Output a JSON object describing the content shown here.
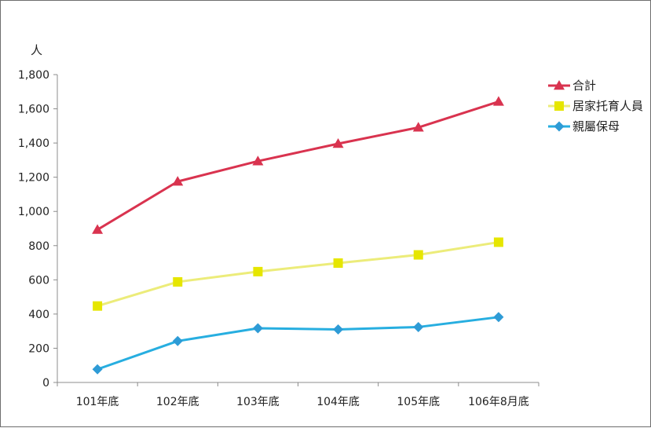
{
  "chart_data": {
    "type": "line",
    "title": "",
    "xlabel": "",
    "ylabel": "人",
    "categories": [
      "101年底",
      "102年底",
      "103年底",
      "104年底",
      "105年底",
      "106年8月底"
    ],
    "ylim": [
      0,
      1800
    ],
    "yticks": [
      0,
      200,
      400,
      600,
      800,
      1000,
      1200,
      1400,
      1600,
      1800
    ],
    "ytick_labels": [
      "0",
      "200",
      "400",
      "600",
      "800",
      "1,000",
      "1,200",
      "1,400",
      "1,600",
      "1,800"
    ],
    "grid": false,
    "legend_position": "right",
    "series": [
      {
        "name": "合計",
        "values": [
          893,
          1175,
          1294,
          1396,
          1491,
          1642
        ],
        "color": "#d9334f",
        "marker": "triangle"
      },
      {
        "name": "居家托育人員",
        "values": [
          447,
          588,
          648,
          698,
          746,
          820
        ],
        "color": "#e6e600",
        "line_color": "#ecec7a",
        "marker": "square"
      },
      {
        "name": "親屬保母",
        "values": [
          77,
          242,
          317,
          310,
          324,
          382
        ],
        "color": "#2e9bd6",
        "line_color": "#27aee0",
        "marker": "diamond"
      }
    ]
  }
}
